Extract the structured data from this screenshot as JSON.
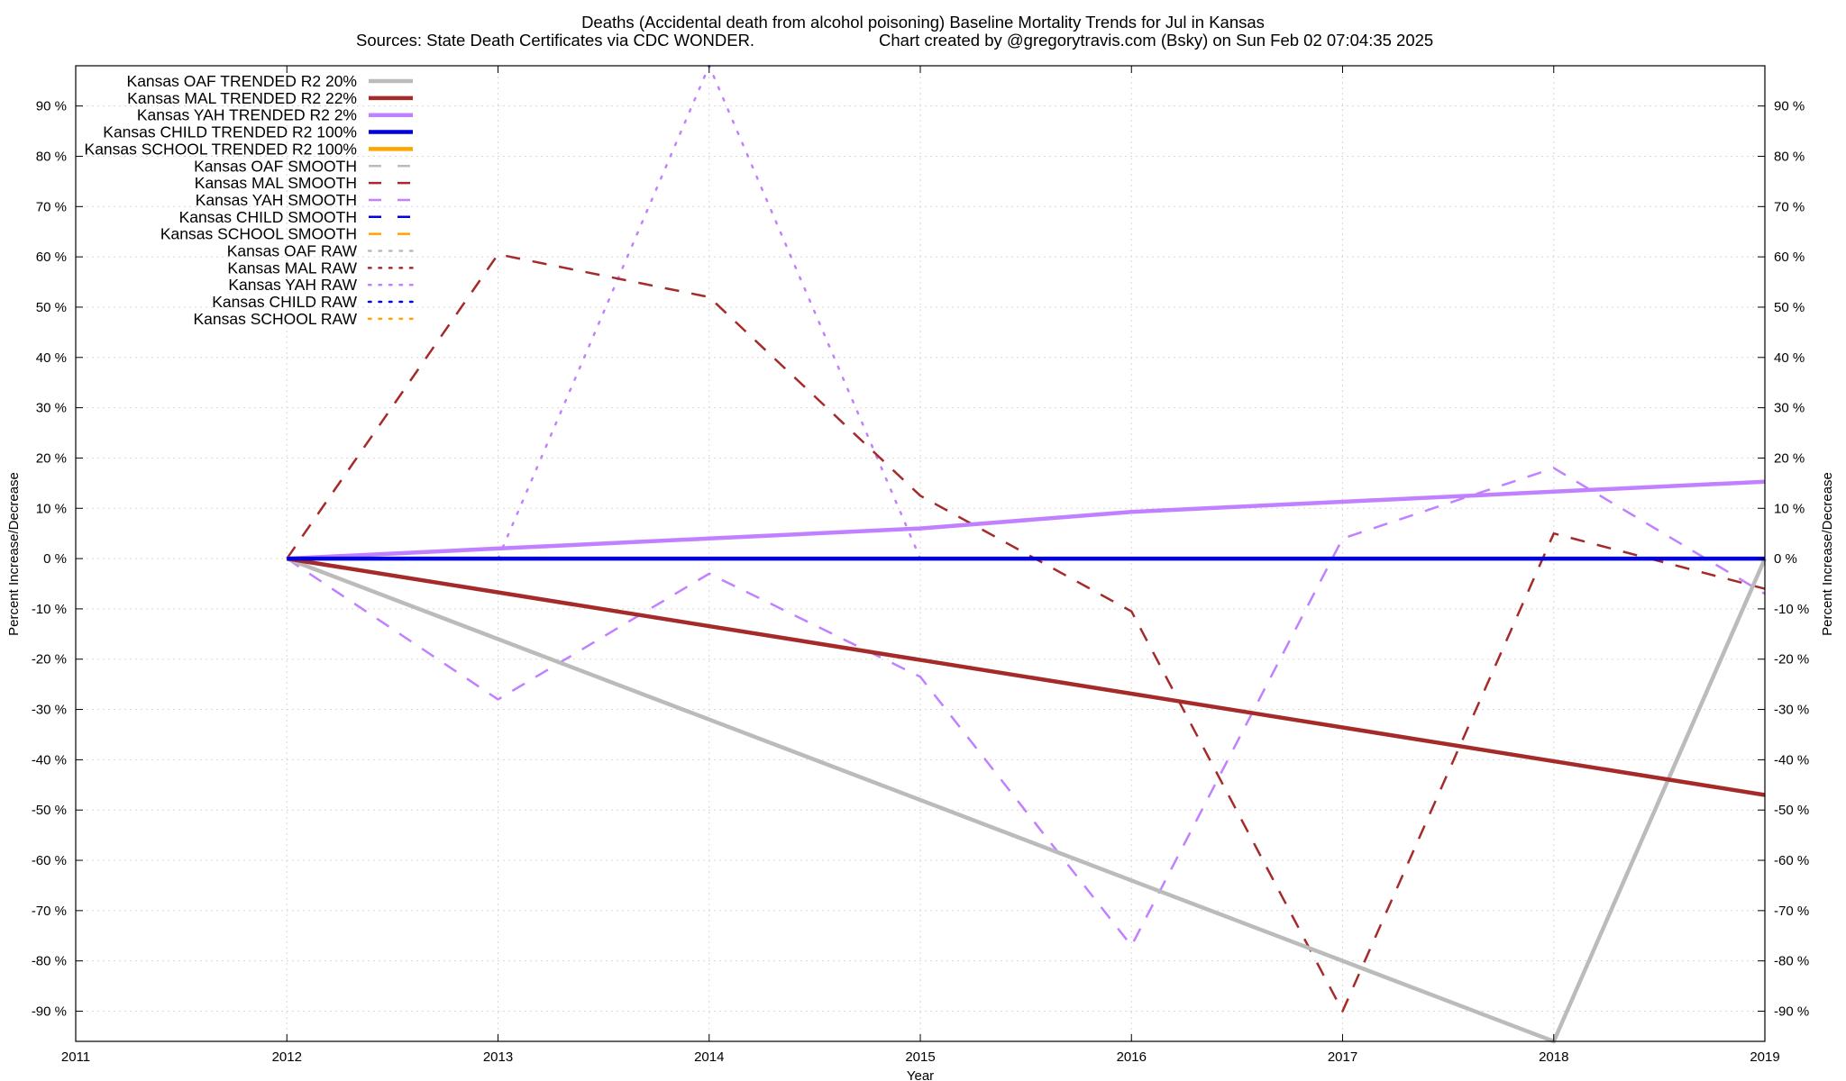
{
  "chart_data": {
    "type": "line",
    "title": "Deaths (Accidental death from alcohol poisoning)  Baseline Mortality Trends for Jul in Kansas",
    "subtitle_left": "Sources: State Death Certificates via CDC WONDER.",
    "subtitle_right": "Chart created by @gregorytravis.com (Bsky) on Sun Feb 02 07:04:35 2025",
    "xlabel": "Year",
    "ylabel_left": "Percent Increase/Decrease",
    "ylabel_right": "Percent Increase/Decrease",
    "xlim": [
      2011,
      2019
    ],
    "ylim": [
      -96,
      98
    ],
    "x_ticks": [
      2011,
      2012,
      2013,
      2014,
      2015,
      2016,
      2017,
      2018,
      2019
    ],
    "x_tick_labels": [
      "2011",
      "2012",
      "2013",
      "2014",
      "2015",
      "2016",
      "2017",
      "2018",
      "2019"
    ],
    "y_ticks": [
      -90,
      -80,
      -70,
      -60,
      -50,
      -40,
      -30,
      -20,
      -10,
      0,
      10,
      20,
      30,
      40,
      50,
      60,
      70,
      80,
      90
    ],
    "y_tick_labels": [
      "-90 %",
      "-80 %",
      "-70 %",
      "-60 %",
      "-50 %",
      "-40 %",
      "-30 %",
      "-20 %",
      "-10 %",
      "0 %",
      "10 %",
      "20 %",
      "30 %",
      "40 %",
      "50 %",
      "60 %",
      "70 %",
      "80 %",
      "90 %"
    ],
    "grid": true,
    "legend_position": "top-left",
    "colors": {
      "OAF": "#bbbbbb",
      "MAL": "#a52a2a",
      "YAH": "#c080ff",
      "CHILD": "#0000dd",
      "SCHOOL": "#ffa500"
    },
    "series": [
      {
        "name": "Kansas OAF TRENDED R2  20%",
        "group": "OAF",
        "style": "trend",
        "x": [
          2012,
          2018,
          2019
        ],
        "y": [
          0,
          -96,
          0
        ]
      },
      {
        "name": "Kansas MAL TRENDED R2  22%",
        "group": "MAL",
        "style": "trend",
        "x": [
          2012,
          2019
        ],
        "y": [
          0,
          -47
        ]
      },
      {
        "name": "Kansas YAH TRENDED R2   2%",
        "group": "YAH",
        "style": "trend",
        "x": [
          2012,
          2013,
          2014,
          2015,
          2016,
          2017,
          2018,
          2019
        ],
        "y": [
          0,
          2,
          4,
          6,
          9.3,
          11.3,
          13.3,
          15.3
        ]
      },
      {
        "name": "Kansas CHILD TRENDED R2 100%",
        "group": "CHILD",
        "style": "trend",
        "x": [
          2012,
          2019
        ],
        "y": [
          0,
          0
        ]
      },
      {
        "name": "Kansas SCHOOL TRENDED R2 100%",
        "group": "SCHOOL",
        "style": "trend",
        "x": [],
        "y": []
      },
      {
        "name": "Kansas OAF SMOOTH",
        "group": "OAF",
        "style": "smooth",
        "x": [],
        "y": []
      },
      {
        "name": "Kansas MAL SMOOTH",
        "group": "MAL",
        "style": "smooth",
        "x": [
          2012,
          2013,
          2014,
          2015,
          2016,
          2017,
          2018,
          2019
        ],
        "y": [
          0,
          60.5,
          52,
          12.5,
          -10.5,
          -90,
          5,
          -6
        ]
      },
      {
        "name": "Kansas YAH SMOOTH",
        "group": "YAH",
        "style": "smooth",
        "x": [
          2012,
          2013,
          2014,
          2015,
          2016,
          2017,
          2018,
          2019
        ],
        "y": [
          0,
          -28,
          -3,
          -23.5,
          -77,
          4,
          18,
          -7
        ]
      },
      {
        "name": "Kansas CHILD SMOOTH",
        "group": "CHILD",
        "style": "smooth",
        "x": [],
        "y": []
      },
      {
        "name": "Kansas SCHOOL SMOOTH",
        "group": "SCHOOL",
        "style": "smooth",
        "x": [],
        "y": []
      },
      {
        "name": "Kansas OAF RAW",
        "group": "OAF",
        "style": "raw",
        "x": [],
        "y": []
      },
      {
        "name": "Kansas MAL RAW",
        "group": "MAL",
        "style": "raw",
        "x": [],
        "y": []
      },
      {
        "name": "Kansas YAH RAW",
        "group": "YAH",
        "style": "raw",
        "x": [
          2013,
          2014,
          2015,
          2016,
          2017,
          2018,
          2019
        ],
        "y": [
          0,
          98,
          0,
          0,
          0,
          0,
          0
        ]
      },
      {
        "name": "Kansas CHILD RAW",
        "group": "CHILD",
        "style": "raw",
        "x": [
          2015,
          2019
        ],
        "y": [
          0,
          0
        ]
      },
      {
        "name": "Kansas SCHOOL RAW",
        "group": "SCHOOL",
        "style": "raw",
        "x": [],
        "y": []
      }
    ]
  }
}
